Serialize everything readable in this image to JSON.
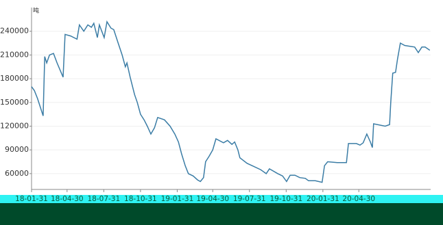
{
  "chart_data": {
    "type": "line",
    "y_label": "吨",
    "x": [
      "18-01-31",
      "18-02-07",
      "18-02-15",
      "18-03-01",
      "18-03-05",
      "18-03-10",
      "18-03-17",
      "18-03-27",
      "18-04-05",
      "18-04-20",
      "18-04-25",
      "18-05-09",
      "18-05-25",
      "18-05-31",
      "18-06-11",
      "18-06-21",
      "18-06-30",
      "18-07-06",
      "18-07-15",
      "18-07-20",
      "18-08-01",
      "18-08-08",
      "18-08-18",
      "18-08-25",
      "18-09-05",
      "18-09-15",
      "18-09-23",
      "18-09-27",
      "18-10-05",
      "18-10-16",
      "18-10-23",
      "18-10-31",
      "18-11-09",
      "18-11-17",
      "18-11-26",
      "18-12-05",
      "18-12-13",
      "18-12-30",
      "19-01-13",
      "19-01-25",
      "19-02-03",
      "19-02-11",
      "19-02-20",
      "19-02-28",
      "19-03-12",
      "19-03-23",
      "19-03-30",
      "19-04-07",
      "19-04-12",
      "19-04-21",
      "19-04-30",
      "19-05-08",
      "19-05-27",
      "19-06-06",
      "19-06-17",
      "19-06-24",
      "19-07-02",
      "19-07-07",
      "19-07-25",
      "19-08-07",
      "19-08-28",
      "19-09-11",
      "19-09-19",
      "19-10-10",
      "19-10-22",
      "19-11-01",
      "19-11-10",
      "19-11-22",
      "19-12-04",
      "19-12-18",
      "19-12-26",
      "20-01-12",
      "20-01-29",
      "20-02-04",
      "20-02-12",
      "20-03-07",
      "20-03-30",
      "20-04-04",
      "20-04-24",
      "20-05-03",
      "20-05-11",
      "20-05-20",
      "20-05-29",
      "20-06-03",
      "20-06-06",
      "20-07-05",
      "20-07-16",
      "20-07-19",
      "20-07-24",
      "20-07-31",
      "20-08-05",
      "20-08-12",
      "20-08-23",
      "20-09-17",
      "20-09-26",
      "20-10-05",
      "20-10-13",
      "20-10-25"
    ],
    "series": [
      {
        "color": "#3a7ca5",
        "values": [
          170000,
          165000,
          155000,
          133000,
          208000,
          200000,
          210000,
          212000,
          200000,
          182000,
          236000,
          234000,
          230000,
          248000,
          240000,
          248000,
          245000,
          250000,
          232000,
          248000,
          232000,
          252000,
          244000,
          242000,
          225000,
          210000,
          195000,
          200000,
          182000,
          160000,
          150000,
          135000,
          128000,
          120000,
          110000,
          118000,
          131000,
          128000,
          120000,
          110000,
          100000,
          85000,
          70000,
          60000,
          57000,
          52000,
          50000,
          55000,
          75000,
          82000,
          90000,
          104000,
          99000,
          102000,
          97000,
          100000,
          90000,
          80000,
          73000,
          70000,
          65000,
          60000,
          66000,
          60000,
          57000,
          50000,
          58000,
          58000,
          55000,
          54000,
          51000,
          51000,
          49000,
          70000,
          75000,
          74000,
          74000,
          98000,
          98000,
          96000,
          99000,
          110000,
          100000,
          93000,
          123000,
          120000,
          122000,
          150000,
          187000,
          188000,
          205000,
          225000,
          222000,
          220000,
          213000,
          220000,
          220000,
          216000
        ]
      }
    ],
    "xlim": [
      "18-01-31",
      "20-10-27"
    ],
    "xticks": [
      "18-01-31",
      "18-04-30",
      "18-07-31",
      "18-10-31",
      "19-01-31",
      "19-04-30",
      "19-07-31",
      "19-10-31",
      "20-01-31",
      "20-04-30"
    ],
    "ylim": [
      40000,
      270000
    ],
    "yticks": [
      60000,
      90000,
      120000,
      150000,
      180000,
      210000,
      240000
    ],
    "grid": true
  }
}
